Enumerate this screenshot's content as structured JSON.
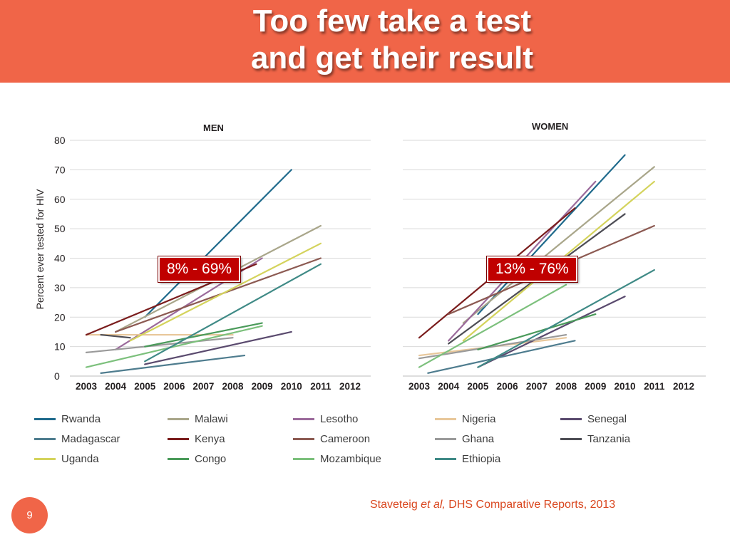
{
  "title": {
    "line1": "Too few take a test",
    "line2": "and get their result"
  },
  "panels": {
    "men": "MEN",
    "women": "WOMEN"
  },
  "ylabel": "Percent ever tested for HIV",
  "callouts": {
    "men": "8% - 69%",
    "women": "13% - 76%"
  },
  "citation": {
    "author": "Staveteig ",
    "etal": "et al,",
    "source": " DHS Comparative Reports, 2013"
  },
  "page_number": "9",
  "legend": [
    {
      "name": "Rwanda",
      "color": "#1f6a8c"
    },
    {
      "name": "Malawi",
      "color": "#a9a68a"
    },
    {
      "name": "Lesotho",
      "color": "#9b6a9b"
    },
    {
      "name": "Nigeria",
      "color": "#e8c79a"
    },
    {
      "name": "Senegal",
      "color": "#5a4a6e"
    },
    {
      "name": "Madagascar",
      "color": "#4e7c8e"
    },
    {
      "name": "Kenya",
      "color": "#7a1c1c"
    },
    {
      "name": "Cameroon",
      "color": "#8c5a52"
    },
    {
      "name": "Ghana",
      "color": "#9a9a9a"
    },
    {
      "name": "Tanzania",
      "color": "#4d4d55"
    },
    {
      "name": "Uganda",
      "color": "#d4d35c"
    },
    {
      "name": "Congo",
      "color": "#4a9a5a"
    },
    {
      "name": "Mozambique",
      "color": "#7cc07c"
    },
    {
      "name": "Ethiopia",
      "color": "#3f8a86"
    }
  ],
  "chart_data": [
    {
      "type": "line",
      "title": "MEN",
      "ylabel": "Percent ever tested for HIV",
      "xlabel": "",
      "x_ticks": [
        "2003",
        "2004",
        "2005",
        "2006",
        "2007",
        "2008",
        "2009",
        "2010",
        "2011",
        "2012"
      ],
      "y_ticks": [
        "0",
        "10",
        "20",
        "30",
        "40",
        "50",
        "60",
        "70",
        "80"
      ],
      "xlim": [
        2003,
        2012
      ],
      "ylim": [
        0,
        80
      ],
      "grid": true,
      "series": [
        {
          "name": "Rwanda",
          "color": "#1f6a8c",
          "x": [
            2005,
            2010
          ],
          "y": [
            20,
            70
          ]
        },
        {
          "name": "Malawi",
          "color": "#a9a68a",
          "x": [
            2004,
            2011
          ],
          "y": [
            15,
            51
          ]
        },
        {
          "name": "Lesotho",
          "color": "#9b6a9b",
          "x": [
            2004,
            2009
          ],
          "y": [
            9,
            40
          ]
        },
        {
          "name": "Nigeria",
          "color": "#e8c79a",
          "x": [
            2003,
            2008
          ],
          "y": [
            14,
            14
          ]
        },
        {
          "name": "Senegal",
          "color": "#5a4a6e",
          "x": [
            2005,
            2010
          ],
          "y": [
            4,
            15
          ]
        },
        {
          "name": "Madagascar",
          "color": "#4e7c8e",
          "x": [
            2003.5,
            2008.4
          ],
          "y": [
            1,
            7
          ]
        },
        {
          "name": "Kenya",
          "color": "#7a1c1c",
          "x": [
            2003,
            2008.8
          ],
          "y": [
            14,
            38
          ]
        },
        {
          "name": "Cameroon",
          "color": "#8c5a52",
          "x": [
            2004,
            2011
          ],
          "y": [
            15,
            40
          ]
        },
        {
          "name": "Ghana",
          "color": "#9a9a9a",
          "x": [
            2003,
            2008
          ],
          "y": [
            8,
            13
          ]
        },
        {
          "name": "Tanzania",
          "color": "#4d4d55",
          "x": [
            2003.5,
            2004.5
          ],
          "y": [
            14,
            13
          ]
        },
        {
          "name": "Uganda",
          "color": "#d4d35c",
          "x": [
            2004.5,
            2011
          ],
          "y": [
            12,
            45
          ]
        },
        {
          "name": "Congo",
          "color": "#4a9a5a",
          "x": [
            2005,
            2009
          ],
          "y": [
            10,
            18
          ]
        },
        {
          "name": "Mozambique",
          "color": "#7cc07c",
          "x": [
            2003,
            2009
          ],
          "y": [
            3,
            17
          ]
        },
        {
          "name": "Ethiopia",
          "color": "#3f8a86",
          "x": [
            2005,
            2011
          ],
          "y": [
            5,
            38
          ]
        }
      ]
    },
    {
      "type": "line",
      "title": "WOMEN",
      "xlabel": "",
      "x_ticks": [
        "2003",
        "2004",
        "2005",
        "2006",
        "2007",
        "2008",
        "2009",
        "2010",
        "2011",
        "2012"
      ],
      "xlim": [
        2003,
        2012
      ],
      "ylim": [
        0,
        80
      ],
      "grid": true,
      "series": [
        {
          "name": "Rwanda",
          "color": "#1f6a8c",
          "x": [
            2005,
            2010
          ],
          "y": [
            21,
            75
          ]
        },
        {
          "name": "Malawi",
          "color": "#a9a68a",
          "x": [
            2004.5,
            2011
          ],
          "y": [
            18,
            71
          ]
        },
        {
          "name": "Lesotho",
          "color": "#9b6a9b",
          "x": [
            2004,
            2009
          ],
          "y": [
            12,
            66
          ]
        },
        {
          "name": "Nigeria",
          "color": "#e8c79a",
          "x": [
            2003,
            2008
          ],
          "y": [
            7,
            13
          ]
        },
        {
          "name": "Senegal",
          "color": "#5a4a6e",
          "x": [
            2005,
            2010
          ],
          "y": [
            3,
            27
          ]
        },
        {
          "name": "Madagascar",
          "color": "#4e7c8e",
          "x": [
            2003.3,
            2008.3
          ],
          "y": [
            1,
            12
          ]
        },
        {
          "name": "Kenya",
          "color": "#7a1c1c",
          "x": [
            2003,
            2008.3
          ],
          "y": [
            13,
            57
          ]
        },
        {
          "name": "Cameroon",
          "color": "#8c5a52",
          "x": [
            2004,
            2011
          ],
          "y": [
            21,
            51
          ]
        },
        {
          "name": "Ghana",
          "color": "#9a9a9a",
          "x": [
            2003,
            2008
          ],
          "y": [
            6,
            14
          ]
        },
        {
          "name": "Tanzania",
          "color": "#4d4d55",
          "x": [
            2004,
            2010
          ],
          "y": [
            11,
            55
          ]
        },
        {
          "name": "Uganda",
          "color": "#d4d35c",
          "x": [
            2004.5,
            2011
          ],
          "y": [
            12,
            66
          ]
        },
        {
          "name": "Congo",
          "color": "#4a9a5a",
          "x": [
            2005,
            2009
          ],
          "y": [
            9,
            21
          ]
        },
        {
          "name": "Mozambique",
          "color": "#7cc07c",
          "x": [
            2003,
            2008
          ],
          "y": [
            3,
            31
          ]
        },
        {
          "name": "Ethiopia",
          "color": "#3f8a86",
          "x": [
            2005,
            2011
          ],
          "y": [
            3,
            36
          ]
        }
      ]
    }
  ]
}
